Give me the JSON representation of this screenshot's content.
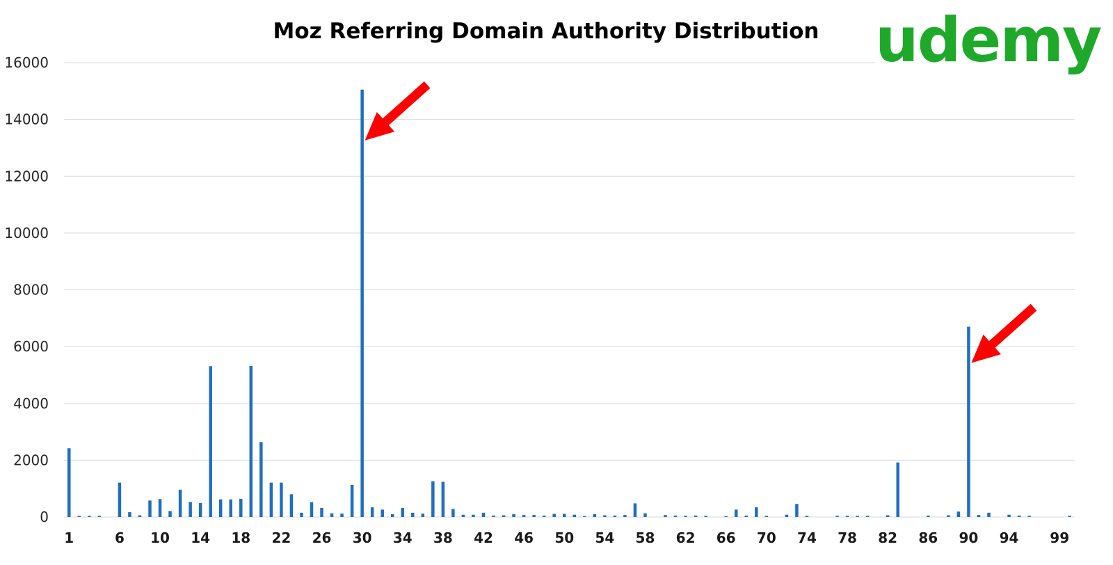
{
  "logo": {
    "text": "udemy",
    "color": "#1fa92b"
  },
  "annotations": {
    "arrow_targets": [
      30,
      90
    ],
    "arrow_color": "#ff0000"
  },
  "chart_data": {
    "type": "bar",
    "title": "Moz Referring Domain Authority Distribution",
    "xlabel": "",
    "ylabel": "",
    "ylim": [
      0,
      16000
    ],
    "yticks": [
      0,
      2000,
      4000,
      6000,
      8000,
      10000,
      12000,
      14000,
      16000
    ],
    "x_tick_labels": [
      1,
      6,
      10,
      14,
      18,
      22,
      26,
      30,
      34,
      38,
      42,
      46,
      50,
      54,
      58,
      62,
      66,
      70,
      74,
      78,
      82,
      86,
      90,
      94,
      99
    ],
    "grid": true,
    "legend": "none",
    "bar_color": "#1f6fc0",
    "categories": [
      1,
      2,
      3,
      4,
      5,
      6,
      7,
      8,
      9,
      10,
      11,
      12,
      13,
      14,
      15,
      16,
      17,
      18,
      19,
      20,
      21,
      22,
      23,
      24,
      25,
      26,
      27,
      28,
      29,
      30,
      31,
      32,
      33,
      34,
      35,
      36,
      37,
      38,
      39,
      40,
      41,
      42,
      43,
      44,
      45,
      46,
      47,
      48,
      49,
      50,
      51,
      52,
      53,
      54,
      55,
      56,
      57,
      58,
      59,
      60,
      61,
      62,
      63,
      64,
      65,
      66,
      67,
      68,
      69,
      70,
      71,
      72,
      73,
      74,
      75,
      76,
      77,
      78,
      79,
      80,
      81,
      82,
      83,
      84,
      85,
      86,
      87,
      88,
      89,
      90,
      91,
      92,
      93,
      94,
      95,
      96,
      97,
      98,
      99,
      100
    ],
    "values": [
      2420,
      40,
      40,
      40,
      0,
      1210,
      170,
      60,
      580,
      630,
      210,
      960,
      530,
      490,
      5310,
      620,
      620,
      640,
      5320,
      2640,
      1210,
      1210,
      800,
      150,
      520,
      320,
      130,
      120,
      1130,
      15050,
      340,
      260,
      100,
      320,
      150,
      120,
      1260,
      1240,
      280,
      80,
      80,
      150,
      50,
      60,
      100,
      70,
      70,
      50,
      110,
      110,
      80,
      30,
      100,
      60,
      50,
      70,
      480,
      130,
      0,
      70,
      50,
      40,
      50,
      40,
      0,
      30,
      260,
      50,
      340,
      40,
      0,
      80,
      460,
      40,
      0,
      0,
      40,
      40,
      40,
      40,
      0,
      60,
      1920,
      0,
      0,
      50,
      0,
      60,
      190,
      6700,
      70,
      150,
      0,
      80,
      50,
      40,
      0,
      0,
      0,
      40
    ]
  }
}
